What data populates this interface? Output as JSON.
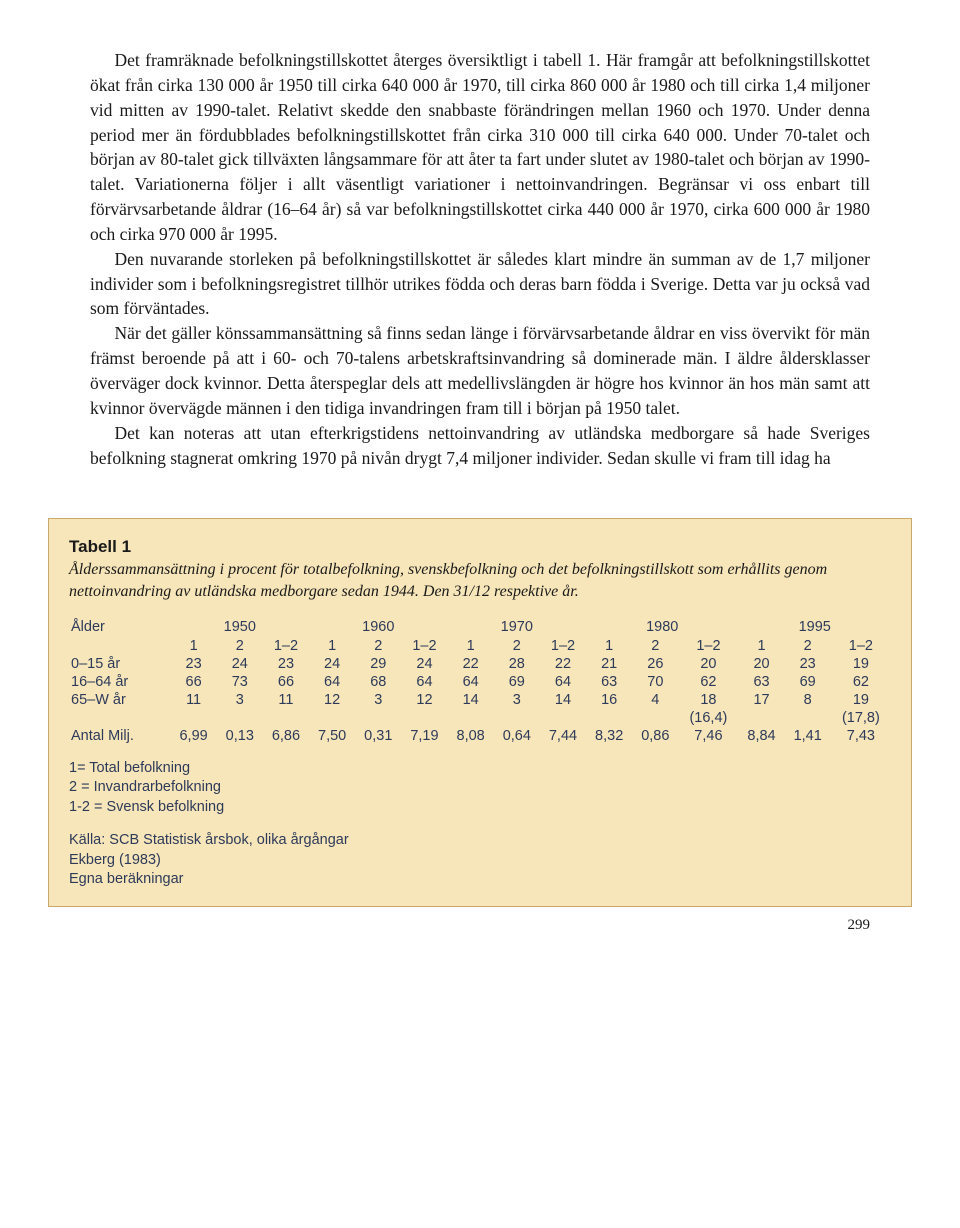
{
  "body": {
    "p1": "Det framräknade befolkningstillskottet återges översiktligt i tabell 1. Här framgår att befolkningstillskottet ökat från cirka 130 000 år 1950 till cirka 640 000 år 1970, till cirka 860 000 år 1980 och till cirka 1,4 miljoner vid mitten av 1990-talet. Relativt skedde den snabbaste förändringen mellan 1960 och 1970. Under denna period mer än fördubblades befolkningstillskottet från cirka 310 000 till cirka 640 000. Under 70-talet och början av 80-talet gick tillväxten långsammare för att åter ta fart under slutet av 1980-talet och början av 1990-talet. Variationerna följer i allt väsentligt variationer i nettoinvandringen. Begränsar vi oss enbart till förvärvsarbetande åldrar (16–64 år) så var befolkningstillskottet cirka 440 000 år 1970, cirka 600 000 år 1980 och cirka 970 000 år 1995.",
    "p2": "Den nuvarande storleken på befolkningstillskottet är således klart mindre än summan av de 1,7 miljoner individer som i befolkningsregistret tillhör utrikes födda och deras barn födda i Sverige. Detta var ju också vad som förväntades.",
    "p3": "När det gäller könssammansättning så finns sedan länge i förvärvsarbetande åldrar en viss övervikt för män främst beroende på att i 60- och 70-talens arbetskraftsinvandring så dominerade män. I äldre åldersklasser överväger dock kvinnor. Detta återspeglar dels att medellivslängden är högre hos kvinnor än hos män samt att kvinnor övervägde männen i den tidiga invandringen fram till i början på 1950 talet.",
    "p4": "Det kan noteras att utan efterkrigstidens nettoinvandring av utländska medborgare så hade Sveriges befolkning stagnerat omkring 1970 på nivån drygt 7,4 miljoner individer. Sedan skulle vi fram till idag ha"
  },
  "table": {
    "title": "Tabell 1",
    "caption": "Ålderssammansättning i procent för totalbefolkning, svenskbefolkning och det befolkningstillskott som erhållits genom nettoinvandring av utländska medborgare sedan 1944. Den 31/12 respektive år.",
    "col_alder": "Ålder",
    "years": [
      "1950",
      "1960",
      "1970",
      "1980",
      "1995"
    ],
    "subcols": [
      "1",
      "2",
      "1–2"
    ],
    "rows": [
      {
        "label": "0–15 år",
        "cells": [
          "23",
          "24",
          "23",
          "24",
          "29",
          "24",
          "22",
          "28",
          "22",
          "21",
          "26",
          "20",
          "20",
          "23",
          "19"
        ]
      },
      {
        "label": "16–64 år",
        "cells": [
          "66",
          "73",
          "66",
          "64",
          "68",
          "64",
          "64",
          "69",
          "64",
          "63",
          "70",
          "62",
          "63",
          "69",
          "62"
        ]
      },
      {
        "label": "65–W år",
        "cells": [
          "11",
          "3",
          "11",
          "12",
          "3",
          "12",
          "14",
          "3",
          "14",
          "16",
          "4",
          "18",
          "17",
          "8",
          "19"
        ]
      }
    ],
    "paren_row": [
      "",
      "",
      "",
      "",
      "",
      "",
      "",
      "",
      "",
      "",
      "",
      "(16,4)",
      "",
      "",
      "(17,8)"
    ],
    "antal_label": "Antal Milj.",
    "antal": [
      "6,99",
      "0,13",
      "6,86",
      "7,50",
      "0,31",
      "7,19",
      "8,08",
      "0,64",
      "7,44",
      "8,32",
      "0,86",
      "7,46",
      "8,84",
      "1,41",
      "7,43"
    ],
    "legend": [
      "1= Total befolkning",
      "2 = Invandrarbefolkning",
      "1-2 = Svensk befolkning"
    ],
    "sources": [
      "Källa: SCB Statistisk årsbok, olika årgångar",
      "Ekberg (1983)",
      "Egna beräkningar"
    ]
  },
  "page_number": "299"
}
